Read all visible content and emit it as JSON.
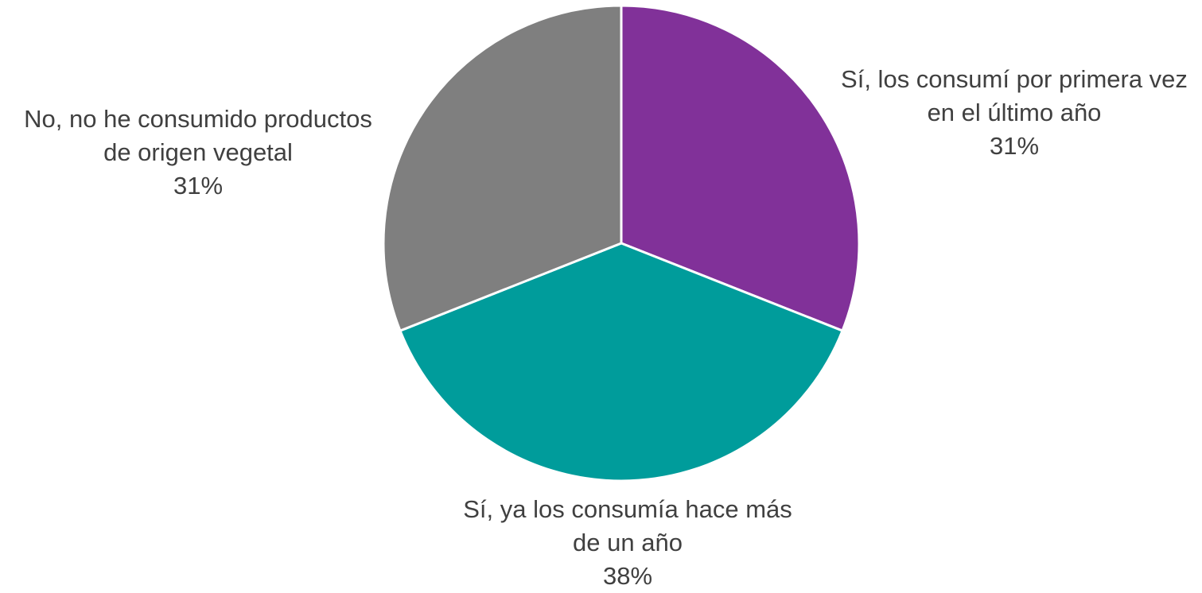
{
  "chart_data": {
    "type": "pie",
    "categories": [
      "Sí, los consumí por primera vez en el último año",
      "Sí, ya los consumía hace más de un año",
      "No, no he consumido productos de origen vegetal"
    ],
    "values": [
      31,
      38,
      31
    ],
    "value_labels": [
      "31%",
      "38%",
      "31%"
    ],
    "colors": [
      "#813199",
      "#009c9b",
      "#7f7f7f"
    ]
  }
}
